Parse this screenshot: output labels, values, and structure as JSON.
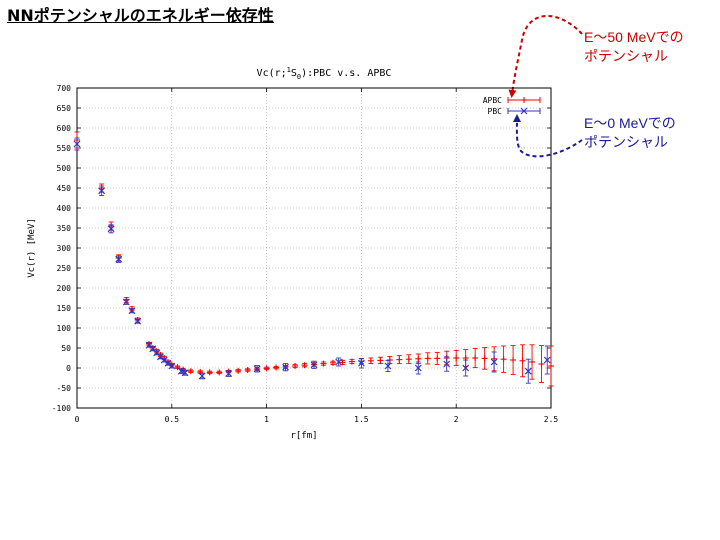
{
  "slide": {
    "title": "NNポテンシャルのエネルギー依存性",
    "annotation_50": {
      "line1": "E～50 MeVでの",
      "line2": "ポテンシャル",
      "color": "#cc0000"
    },
    "annotation_0": {
      "line1": "E～0 MeVでの",
      "line2": "ポテンシャル",
      "color": "#1a1a99"
    }
  },
  "chart_data": {
    "type": "scatter",
    "title_prefix": "Vc(r;",
    "title_sup": "1",
    "title_mid": "S",
    "title_sub": "0",
    "title_suffix": "):PBC v.s. APBC",
    "xlabel": "r[fm]",
    "ylabel": "Vc(r) [MeV]",
    "xlim": [
      0,
      2.5
    ],
    "ylim": [
      -100,
      700
    ],
    "xticks": [
      "0",
      "0.5",
      "1",
      "1.5",
      "2",
      "2.5"
    ],
    "yticks": [
      "-100",
      "-50",
      "0",
      "50",
      "100",
      "150",
      "200",
      "250",
      "300",
      "350",
      "400",
      "450",
      "500",
      "550",
      "600",
      "650",
      "700"
    ],
    "grid": true,
    "legend_position": "top-right",
    "series": [
      {
        "name": "APBC",
        "color": "#ff0000",
        "marker": "plus",
        "points": [
          [
            0.0,
            570,
            20
          ],
          [
            0.13,
            450,
            10
          ],
          [
            0.18,
            355,
            10
          ],
          [
            0.22,
            275,
            8
          ],
          [
            0.26,
            170,
            6
          ],
          [
            0.29,
            148,
            5
          ],
          [
            0.32,
            120,
            5
          ],
          [
            0.38,
            60,
            4
          ],
          [
            0.4,
            50,
            4
          ],
          [
            0.42,
            42,
            4
          ],
          [
            0.44,
            33,
            4
          ],
          [
            0.46,
            25,
            4
          ],
          [
            0.48,
            15,
            3
          ],
          [
            0.5,
            8,
            3
          ],
          [
            0.53,
            2,
            3
          ],
          [
            0.56,
            -4,
            3
          ],
          [
            0.6,
            -8,
            3
          ],
          [
            0.65,
            -10,
            3
          ],
          [
            0.7,
            -11,
            3
          ],
          [
            0.75,
            -11,
            3
          ],
          [
            0.8,
            -9,
            3
          ],
          [
            0.85,
            -7,
            3
          ],
          [
            0.9,
            -5,
            3
          ],
          [
            0.95,
            -3,
            3
          ],
          [
            1.0,
            -1,
            3
          ],
          [
            1.05,
            1,
            3
          ],
          [
            1.1,
            3,
            3
          ],
          [
            1.15,
            5,
            4
          ],
          [
            1.2,
            7,
            4
          ],
          [
            1.25,
            9,
            4
          ],
          [
            1.3,
            11,
            4
          ],
          [
            1.35,
            13,
            4
          ],
          [
            1.4,
            14,
            5
          ],
          [
            1.45,
            16,
            5
          ],
          [
            1.5,
            17,
            6
          ],
          [
            1.55,
            18,
            7
          ],
          [
            1.6,
            19,
            8
          ],
          [
            1.65,
            20,
            9
          ],
          [
            1.7,
            21,
            10
          ],
          [
            1.75,
            22,
            11
          ],
          [
            1.8,
            23,
            12
          ],
          [
            1.85,
            24,
            14
          ],
          [
            1.9,
            24,
            15
          ],
          [
            1.95,
            25,
            17
          ],
          [
            2.0,
            25,
            19
          ],
          [
            2.05,
            25,
            21
          ],
          [
            2.1,
            25,
            24
          ],
          [
            2.15,
            24,
            27
          ],
          [
            2.2,
            23,
            30
          ],
          [
            2.25,
            22,
            33
          ],
          [
            2.3,
            20,
            36
          ],
          [
            2.35,
            18,
            40
          ],
          [
            2.4,
            15,
            43
          ],
          [
            2.45,
            10,
            46
          ],
          [
            2.5,
            5,
            50
          ]
        ]
      },
      {
        "name": "PBC",
        "color": "#3333bb",
        "marker": "cross",
        "points": [
          [
            0.0,
            560,
            15
          ],
          [
            0.13,
            443,
            12
          ],
          [
            0.18,
            348,
            10
          ],
          [
            0.22,
            272,
            8
          ],
          [
            0.26,
            165,
            6
          ],
          [
            0.29,
            143,
            5
          ],
          [
            0.32,
            117,
            5
          ],
          [
            0.38,
            57,
            5
          ],
          [
            0.4,
            48,
            5
          ],
          [
            0.42,
            38,
            5
          ],
          [
            0.44,
            28,
            5
          ],
          [
            0.46,
            20,
            5
          ],
          [
            0.48,
            12,
            5
          ],
          [
            0.5,
            5,
            5
          ],
          [
            0.55,
            -8,
            6
          ],
          [
            0.57,
            -12,
            6
          ],
          [
            0.66,
            -20,
            7
          ],
          [
            0.8,
            -14,
            7
          ],
          [
            0.95,
            -2,
            8
          ],
          [
            1.1,
            2,
            9
          ],
          [
            1.25,
            8,
            9
          ],
          [
            1.38,
            15,
            10
          ],
          [
            1.5,
            12,
            12
          ],
          [
            1.64,
            5,
            14
          ],
          [
            1.8,
            0,
            15
          ],
          [
            1.95,
            10,
            18
          ],
          [
            2.05,
            0,
            20
          ],
          [
            2.2,
            15,
            25
          ],
          [
            2.38,
            -8,
            30
          ],
          [
            2.48,
            20,
            35
          ]
        ]
      }
    ]
  }
}
